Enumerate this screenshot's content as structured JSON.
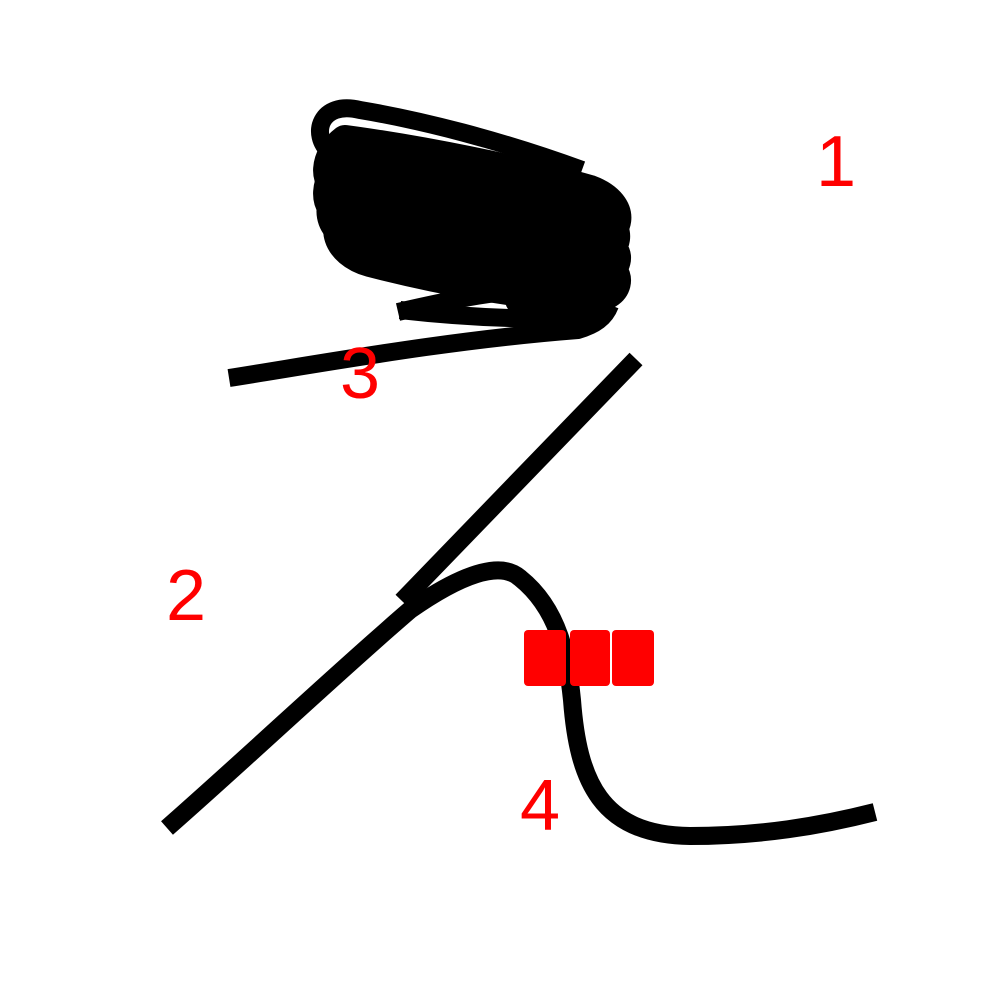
{
  "colors": {
    "background": "#ffffff",
    "stroke": "#000000",
    "label": "#ff0000"
  },
  "labels": {
    "one": "1",
    "two": "2",
    "three": "3",
    "four": "4"
  }
}
